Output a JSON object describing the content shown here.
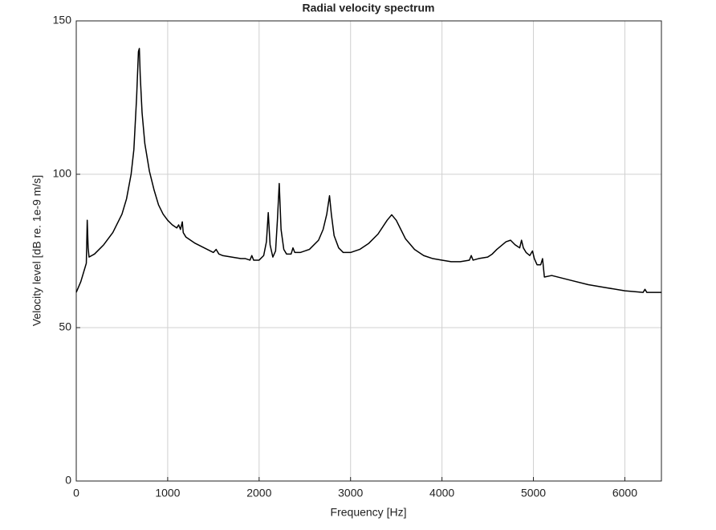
{
  "chart_data": {
    "type": "line",
    "title": "Radial velocity spectrum",
    "xlabel": "Frequency [Hz]",
    "ylabel": "Velocity level [dB re. 1e-9 m/s]",
    "xlim": [
      0,
      6400
    ],
    "xticks": [
      0,
      1000,
      2000,
      3000,
      4000,
      5000,
      6000
    ],
    "ylim": [
      0,
      150
    ],
    "yticks": [
      0,
      50,
      100,
      150
    ],
    "grid": true,
    "series": [
      {
        "name": "Radial velocity",
        "color": "#000000",
        "x": [
          0,
          50,
          100,
          110,
          120,
          130,
          140,
          200,
          300,
          400,
          500,
          550,
          600,
          630,
          660,
          680,
          690,
          700,
          720,
          750,
          800,
          850,
          900,
          950,
          1000,
          1050,
          1100,
          1120,
          1140,
          1160,
          1170,
          1200,
          1300,
          1400,
          1500,
          1530,
          1560,
          1600,
          1700,
          1800,
          1850,
          1900,
          1920,
          1940,
          2000,
          2050,
          2080,
          2100,
          2120,
          2150,
          2180,
          2200,
          2220,
          2240,
          2270,
          2300,
          2350,
          2370,
          2390,
          2450,
          2550,
          2650,
          2700,
          2740,
          2770,
          2790,
          2820,
          2870,
          2920,
          3000,
          3100,
          3200,
          3300,
          3400,
          3450,
          3500,
          3550,
          3600,
          3700,
          3800,
          3900,
          4000,
          4100,
          4200,
          4300,
          4320,
          4340,
          4400,
          4500,
          4550,
          4600,
          4700,
          4750,
          4800,
          4850,
          4870,
          4890,
          4920,
          4960,
          4990,
          5010,
          5040,
          5080,
          5100,
          5120,
          5200,
          5400,
          5600,
          5800,
          6000,
          6200,
          6220,
          6240,
          6400
        ],
        "values": [
          61.5,
          65,
          70,
          71,
          85,
          76,
          73,
          74,
          77,
          81,
          87,
          92,
          100,
          108,
          125,
          140,
          141,
          132,
          120,
          110,
          101,
          95,
          90,
          87,
          85,
          83.5,
          82.5,
          83.5,
          82,
          84.5,
          81,
          79.5,
          77.5,
          76,
          74.5,
          75.5,
          74,
          73.5,
          73,
          72.5,
          72.5,
          72,
          73.5,
          72,
          72,
          73.5,
          78,
          87.5,
          77,
          73,
          75,
          85,
          97,
          82,
          75.5,
          74,
          74,
          76,
          74.5,
          74.5,
          75.5,
          78.5,
          82,
          87,
          93,
          87,
          80,
          76,
          74.5,
          74.5,
          75.5,
          77.5,
          80.5,
          85,
          86.8,
          85,
          82,
          79,
          75.5,
          73.5,
          72.5,
          72,
          71.5,
          71.5,
          72,
          73.5,
          72,
          72.5,
          73,
          74,
          75.5,
          78,
          78.5,
          77,
          76,
          78.5,
          76,
          74.5,
          73.5,
          75,
          72.5,
          70.5,
          70.5,
          72.5,
          66.5,
          67,
          65.5,
          64,
          63,
          62,
          61.5,
          62.5,
          61.5,
          61.5
        ]
      }
    ]
  }
}
